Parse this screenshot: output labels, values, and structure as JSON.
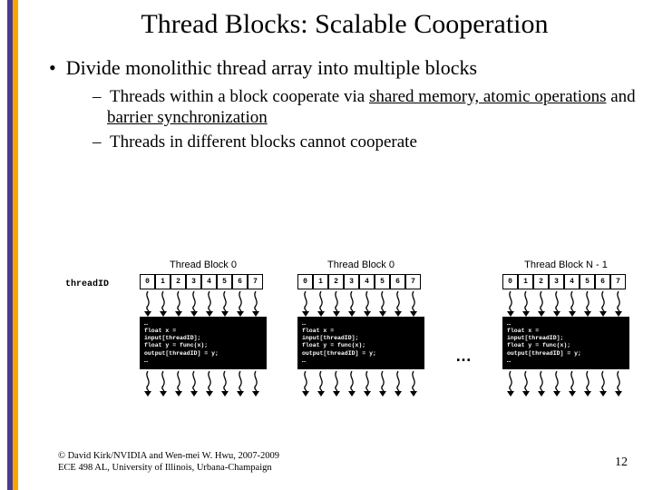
{
  "stripes": [
    "#4a3c8c",
    "#f7a600",
    "#ffffff"
  ],
  "title": "Thread Blocks: Scalable Cooperation",
  "bullet1": "Divide monolithic thread array into multiple blocks",
  "bullet2a_pre": "Threads within a block cooperate via ",
  "bullet2a_u1": "shared memory, atomic operations",
  "bullet2a_mid": " and ",
  "bullet2a_u2": "barrier synchronization",
  "bullet2b": "Threads in different blocks cannot cooperate",
  "threadid_label": "threadID",
  "blocks": [
    {
      "title": "Thread Block 0"
    },
    {
      "title": "Thread Block 0"
    },
    {
      "title": "Thread Block N - 1"
    }
  ],
  "cells": [
    "0",
    "1",
    "2",
    "3",
    "4",
    "5",
    "6",
    "7"
  ],
  "code": "…\nfloat x =\ninput[threadID];\nfloat y = func(x);\noutput[threadID] = y;\n…",
  "ellipsis": "…",
  "footer1": "© David Kirk/NVIDIA and Wen-mei W. Hwu, 2007-2009",
  "footer2": "ECE 498 AL, University of Illinois, Urbana-Champaign",
  "page": "12",
  "colors": {
    "cell_bg": "#ffffff",
    "code_bg": "#000000",
    "code_fg": "#ffffff"
  }
}
